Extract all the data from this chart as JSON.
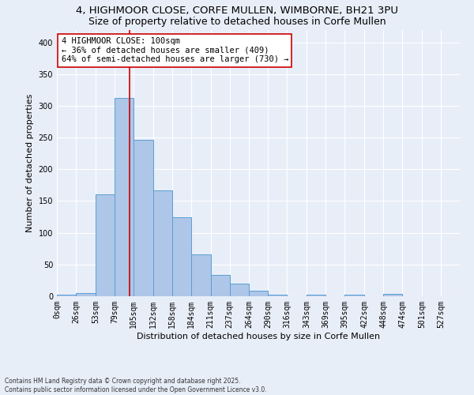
{
  "title_line1": "4, HIGHMOOR CLOSE, CORFE MULLEN, WIMBORNE, BH21 3PU",
  "title_line2": "Size of property relative to detached houses in Corfe Mullen",
  "xlabel": "Distribution of detached houses by size in Corfe Mullen",
  "ylabel": "Number of detached properties",
  "footnote": "Contains HM Land Registry data © Crown copyright and database right 2025.\nContains public sector information licensed under the Open Government Licence v3.0.",
  "bin_labels": [
    "0sqm",
    "26sqm",
    "53sqm",
    "79sqm",
    "105sqm",
    "132sqm",
    "158sqm",
    "184sqm",
    "211sqm",
    "237sqm",
    "264sqm",
    "290sqm",
    "316sqm",
    "343sqm",
    "369sqm",
    "395sqm",
    "422sqm",
    "448sqm",
    "474sqm",
    "501sqm",
    "527sqm"
  ],
  "bar_heights": [
    2,
    5,
    160,
    312,
    247,
    167,
    124,
    66,
    34,
    20,
    9,
    2,
    0,
    3,
    0,
    3,
    0,
    4,
    0,
    0,
    0
  ],
  "bar_color": "#aec6e8",
  "bar_edge_color": "#5a9fd4",
  "bin_edges": [
    0,
    26,
    53,
    79,
    105,
    132,
    158,
    184,
    211,
    237,
    264,
    290,
    316,
    343,
    369,
    395,
    422,
    448,
    474,
    501,
    527,
    553
  ],
  "property_sqm": 100,
  "vline_color": "#cc0000",
  "annotation_text": "4 HIGHMOOR CLOSE: 100sqm\n← 36% of detached houses are smaller (409)\n64% of semi-detached houses are larger (730) →",
  "annotation_box_color": "#ffffff",
  "annotation_box_edge": "#cc0000",
  "ylim": [
    0,
    420
  ],
  "yticks": [
    0,
    50,
    100,
    150,
    200,
    250,
    300,
    350,
    400
  ],
  "background_color": "#e8eef8",
  "grid_color": "#ffffff",
  "title_fontsize": 9.5,
  "subtitle_fontsize": 9,
  "axis_fontsize": 8,
  "tick_fontsize": 7,
  "annotation_fontsize": 7.5
}
